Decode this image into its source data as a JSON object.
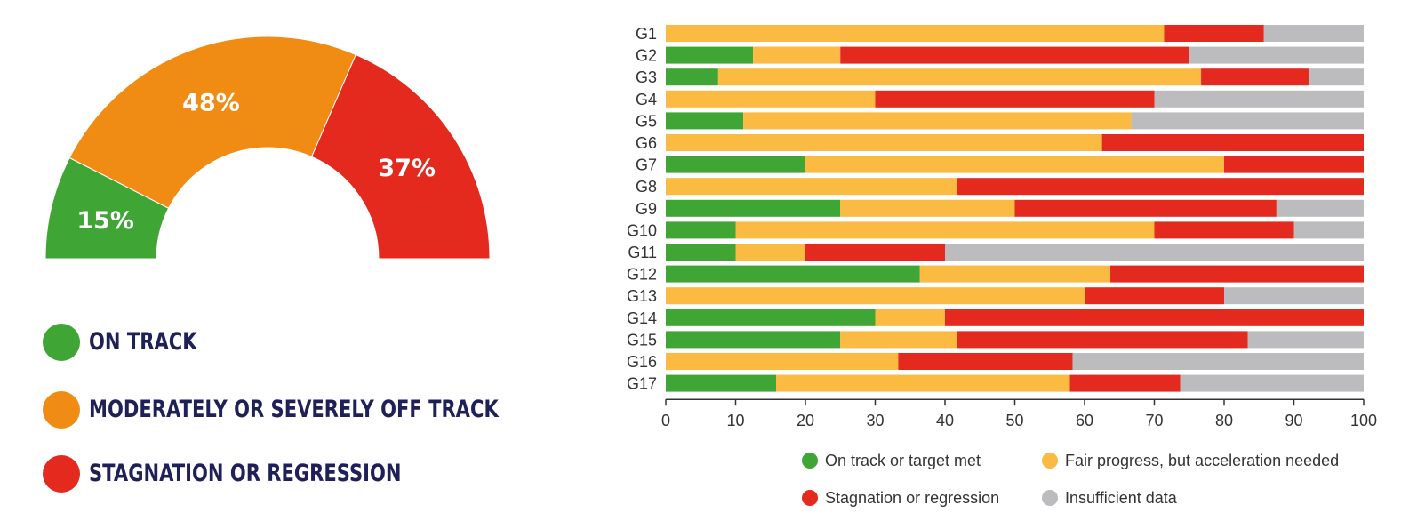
{
  "gauge": {
    "title_hidden": "",
    "segments": [
      {
        "key": "on_track",
        "label": "15%",
        "value": 15,
        "color": "#3fa535"
      },
      {
        "key": "off_track",
        "label": "48%",
        "value": 48,
        "color": "#f08c14"
      },
      {
        "key": "stagnation",
        "label": "37%",
        "value": 37,
        "color": "#e4291e"
      }
    ],
    "legend": [
      {
        "label": "ON TRACK",
        "color": "#3fa535"
      },
      {
        "label": "MODERATELY OR SEVERELY OFF TRACK",
        "color": "#f08c14"
      },
      {
        "label": "STAGNATION OR REGRESSION",
        "color": "#e4291e"
      }
    ]
  },
  "chart_data": {
    "type": "bar",
    "orientation": "horizontal",
    "stacked": true,
    "categories": [
      "G1",
      "G2",
      "G3",
      "G4",
      "G5",
      "G6",
      "G7",
      "G8",
      "G9",
      "G10",
      "G11",
      "G12",
      "G13",
      "G14",
      "G15",
      "G16",
      "G17"
    ],
    "series": [
      {
        "name": "On track or target met",
        "color": "#3fa535",
        "values": [
          0,
          12.5,
          7.5,
          0,
          11.1,
          0,
          20,
          0,
          25,
          10,
          10,
          36.4,
          0,
          30,
          25,
          0,
          15.8
        ]
      },
      {
        "name": "Fair progress, but acceleration needed",
        "color": "#fbba42",
        "values": [
          71.4,
          12.5,
          69.2,
          30,
          55.6,
          62.5,
          60,
          41.7,
          25,
          60,
          10,
          27.3,
          60,
          10,
          16.7,
          33.3,
          42.1
        ]
      },
      {
        "name": "Stagnation or regression",
        "color": "#e4291e",
        "values": [
          14.3,
          50,
          15.4,
          40,
          0,
          37.5,
          20,
          58.3,
          37.5,
          20,
          20,
          36.3,
          20,
          60,
          41.7,
          25,
          15.8
        ]
      },
      {
        "name": "Insufficient data",
        "color": "#bcbcbe",
        "values": [
          14.3,
          25,
          7.9,
          30,
          33.3,
          0,
          0,
          0,
          12.5,
          10,
          60,
          0,
          20,
          0,
          16.6,
          41.7,
          26.3
        ]
      }
    ],
    "xlim": [
      0,
      100
    ],
    "xticks": [
      "0",
      "10",
      "20",
      "30",
      "40",
      "50",
      "60",
      "70",
      "80",
      "90",
      "100"
    ],
    "legend": [
      {
        "label": "On track or target met",
        "color": "#3fa535"
      },
      {
        "label": "Fair progress, but acceleration needed",
        "color": "#fbba42"
      },
      {
        "label": "Stagnation or regression",
        "color": "#e4291e"
      },
      {
        "label": "Insufficient data",
        "color": "#bcbcbe"
      }
    ]
  }
}
